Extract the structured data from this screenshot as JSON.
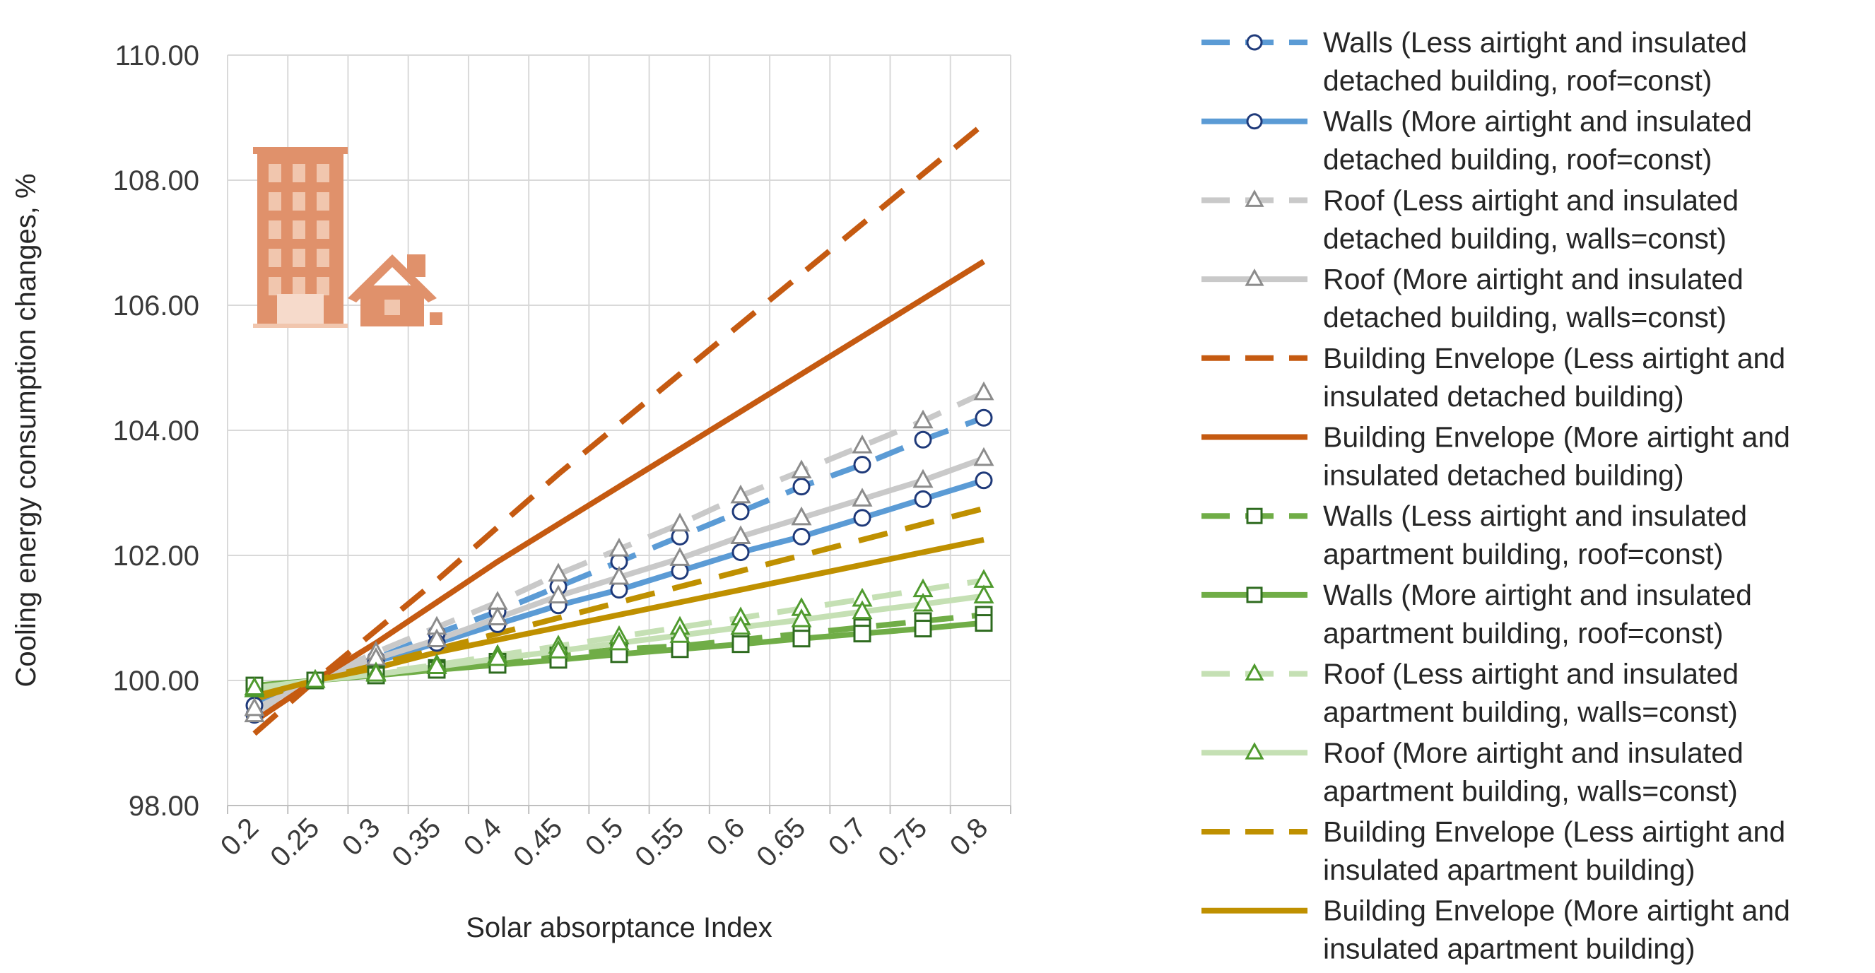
{
  "chart_data": {
    "type": "line",
    "xlabel": "Solar absorptance Index",
    "ylabel": "Cooling energy consumption changes, %",
    "categories": [
      "0.2",
      "0.25",
      "0.3",
      "0.35",
      "0.4",
      "0.45",
      "0.5",
      "0.55",
      "0.6",
      "0.65",
      "0.7",
      "0.75",
      "0.8"
    ],
    "ylim": [
      98,
      110
    ],
    "yticks": [
      "98.00",
      "100.00",
      "102.00",
      "104.00",
      "106.00",
      "108.00",
      "110.00"
    ],
    "grid": true,
    "legend_position": "right",
    "series": [
      {
        "name": "Walls (Less airtight and insulated detached building, roof=const)",
        "color": "#5b9bd5",
        "dash": true,
        "marker": "circle",
        "values": [
          99.45,
          100.0,
          100.35,
          100.75,
          101.1,
          101.5,
          101.9,
          102.3,
          102.7,
          103.1,
          103.45,
          103.85,
          104.2
        ]
      },
      {
        "name": "Walls (More airtight and insulated detached building, roof=const)",
        "color": "#5b9bd5",
        "dash": false,
        "marker": "circle",
        "values": [
          99.6,
          100.0,
          100.3,
          100.6,
          100.9,
          101.2,
          101.45,
          101.75,
          102.05,
          102.3,
          102.6,
          102.9,
          103.2
        ]
      },
      {
        "name": "Roof (Less airtight and insulated detached building, walls=const)",
        "color": "#c9c9c9",
        "dash": true,
        "marker": "triangle",
        "values": [
          99.45,
          100.0,
          100.45,
          100.85,
          101.25,
          101.7,
          102.1,
          102.5,
          102.95,
          103.35,
          103.75,
          104.15,
          104.6
        ]
      },
      {
        "name": "Roof (More airtight and insulated detached building, walls=const)",
        "color": "#c9c9c9",
        "dash": false,
        "marker": "triangle",
        "values": [
          99.55,
          100.0,
          100.35,
          100.65,
          101.0,
          101.35,
          101.65,
          101.95,
          102.3,
          102.6,
          102.9,
          103.2,
          103.55
        ]
      },
      {
        "name": "Building Envelope (Less airtight and insulated detached building)",
        "color": "#c55a11",
        "dash": true,
        "marker": "none",
        "values": [
          99.15,
          100.0,
          100.8,
          101.6,
          102.45,
          103.3,
          104.1,
          104.9,
          105.7,
          106.5,
          107.3,
          108.1,
          108.9
        ]
      },
      {
        "name": "Building Envelope (More airtight and insulated detached building)",
        "color": "#c55a11",
        "dash": false,
        "marker": "none",
        "values": [
          99.35,
          100.0,
          100.6,
          101.25,
          101.9,
          102.5,
          103.1,
          103.7,
          104.3,
          104.9,
          105.5,
          106.1,
          106.7
        ]
      },
      {
        "name": "Walls (Less airtight and insulated apartment building, roof=const)",
        "color": "#70ad47",
        "dash": true,
        "marker": "square",
        "values": [
          99.9,
          100.0,
          100.1,
          100.2,
          100.3,
          100.4,
          100.5,
          100.55,
          100.65,
          100.75,
          100.85,
          100.95,
          101.05
        ]
      },
      {
        "name": "Walls (More airtight and insulated apartment building, roof=const)",
        "color": "#70ad47",
        "dash": false,
        "marker": "square",
        "values": [
          99.92,
          100.0,
          100.08,
          100.17,
          100.25,
          100.33,
          100.42,
          100.5,
          100.58,
          100.67,
          100.75,
          100.83,
          100.92
        ]
      },
      {
        "name": "Roof (Less airtight and insulated apartment building, walls=const)",
        "color": "#c5e0b4",
        "dash": true,
        "marker": "triangle",
        "values": [
          99.85,
          100.0,
          100.12,
          100.25,
          100.4,
          100.55,
          100.7,
          100.85,
          101.0,
          101.15,
          101.3,
          101.45,
          101.6
        ]
      },
      {
        "name": "Roof (More airtight and insulated apartment building, walls=const)",
        "color": "#c5e0b4",
        "dash": false,
        "marker": "triangle",
        "values": [
          99.88,
          100.0,
          100.1,
          100.22,
          100.35,
          100.47,
          100.6,
          100.72,
          100.85,
          100.97,
          101.1,
          101.22,
          101.35
        ]
      },
      {
        "name": "Building Envelope (Less airtight and insulated apartment building)",
        "color": "#bf9000",
        "dash": true,
        "marker": "none",
        "values": [
          99.7,
          100.0,
          100.25,
          100.5,
          100.75,
          101.0,
          101.25,
          101.5,
          101.75,
          102.0,
          102.25,
          102.5,
          102.75
        ]
      },
      {
        "name": "Building Envelope (More airtight and insulated apartment building)",
        "color": "#bf9000",
        "dash": false,
        "marker": "none",
        "values": [
          99.75,
          100.0,
          100.2,
          100.45,
          100.65,
          100.85,
          101.05,
          101.25,
          101.45,
          101.65,
          101.85,
          102.05,
          102.25
        ]
      }
    ],
    "legend": [
      [
        "Walls (Less airtight and insulated",
        "detached building, roof=const)"
      ],
      [
        "Walls (More airtight and insulated",
        "detached building, roof=const)"
      ],
      [
        "Roof (Less airtight and insulated",
        "detached building, walls=const)"
      ],
      [
        "Roof (More airtight and insulated",
        "detached building, walls=const)"
      ],
      [
        "Building Envelope (Less airtight and",
        "insulated detached building)"
      ],
      [
        "Building Envelope (More airtight and",
        "insulated detached building)"
      ],
      [
        "Walls (Less airtight and insulated",
        "apartment building, roof=const)"
      ],
      [
        "Walls (More airtight and insulated",
        "apartment building, roof=const)"
      ],
      [
        "Roof (Less airtight and insulated",
        "apartment building, walls=const)"
      ],
      [
        "Roof (More airtight and insulated",
        "apartment building, walls=const)"
      ],
      [
        "Building Envelope (Less airtight and",
        "insulated apartment building)"
      ],
      [
        "Building Envelope (More airtight and",
        "insulated apartment building)"
      ]
    ],
    "icons": [
      "apartment-building-icon",
      "detached-house-icon"
    ],
    "icon_color": "#e0916b"
  }
}
